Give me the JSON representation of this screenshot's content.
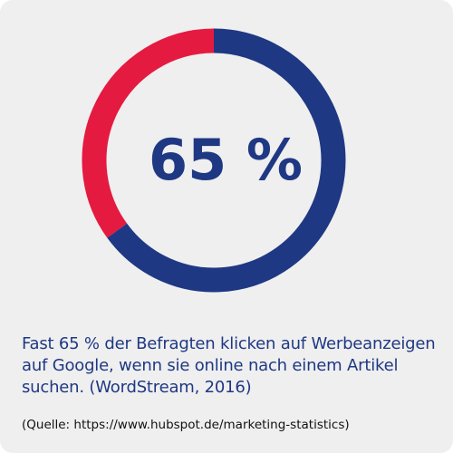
{
  "chart_data": {
    "type": "donut",
    "values": [
      65,
      35
    ],
    "colors": [
      "#1f3884",
      "#e51a40"
    ],
    "center_label": "65 %",
    "caption": "Fast 65 % der Befragten klicken auf Werbeanzeigen auf Google, wenn sie online nach einem Artikel suchen. (WordStream, 2016)",
    "source": "(Quelle: https://www.hubspot.de/marketing-statistics)"
  }
}
